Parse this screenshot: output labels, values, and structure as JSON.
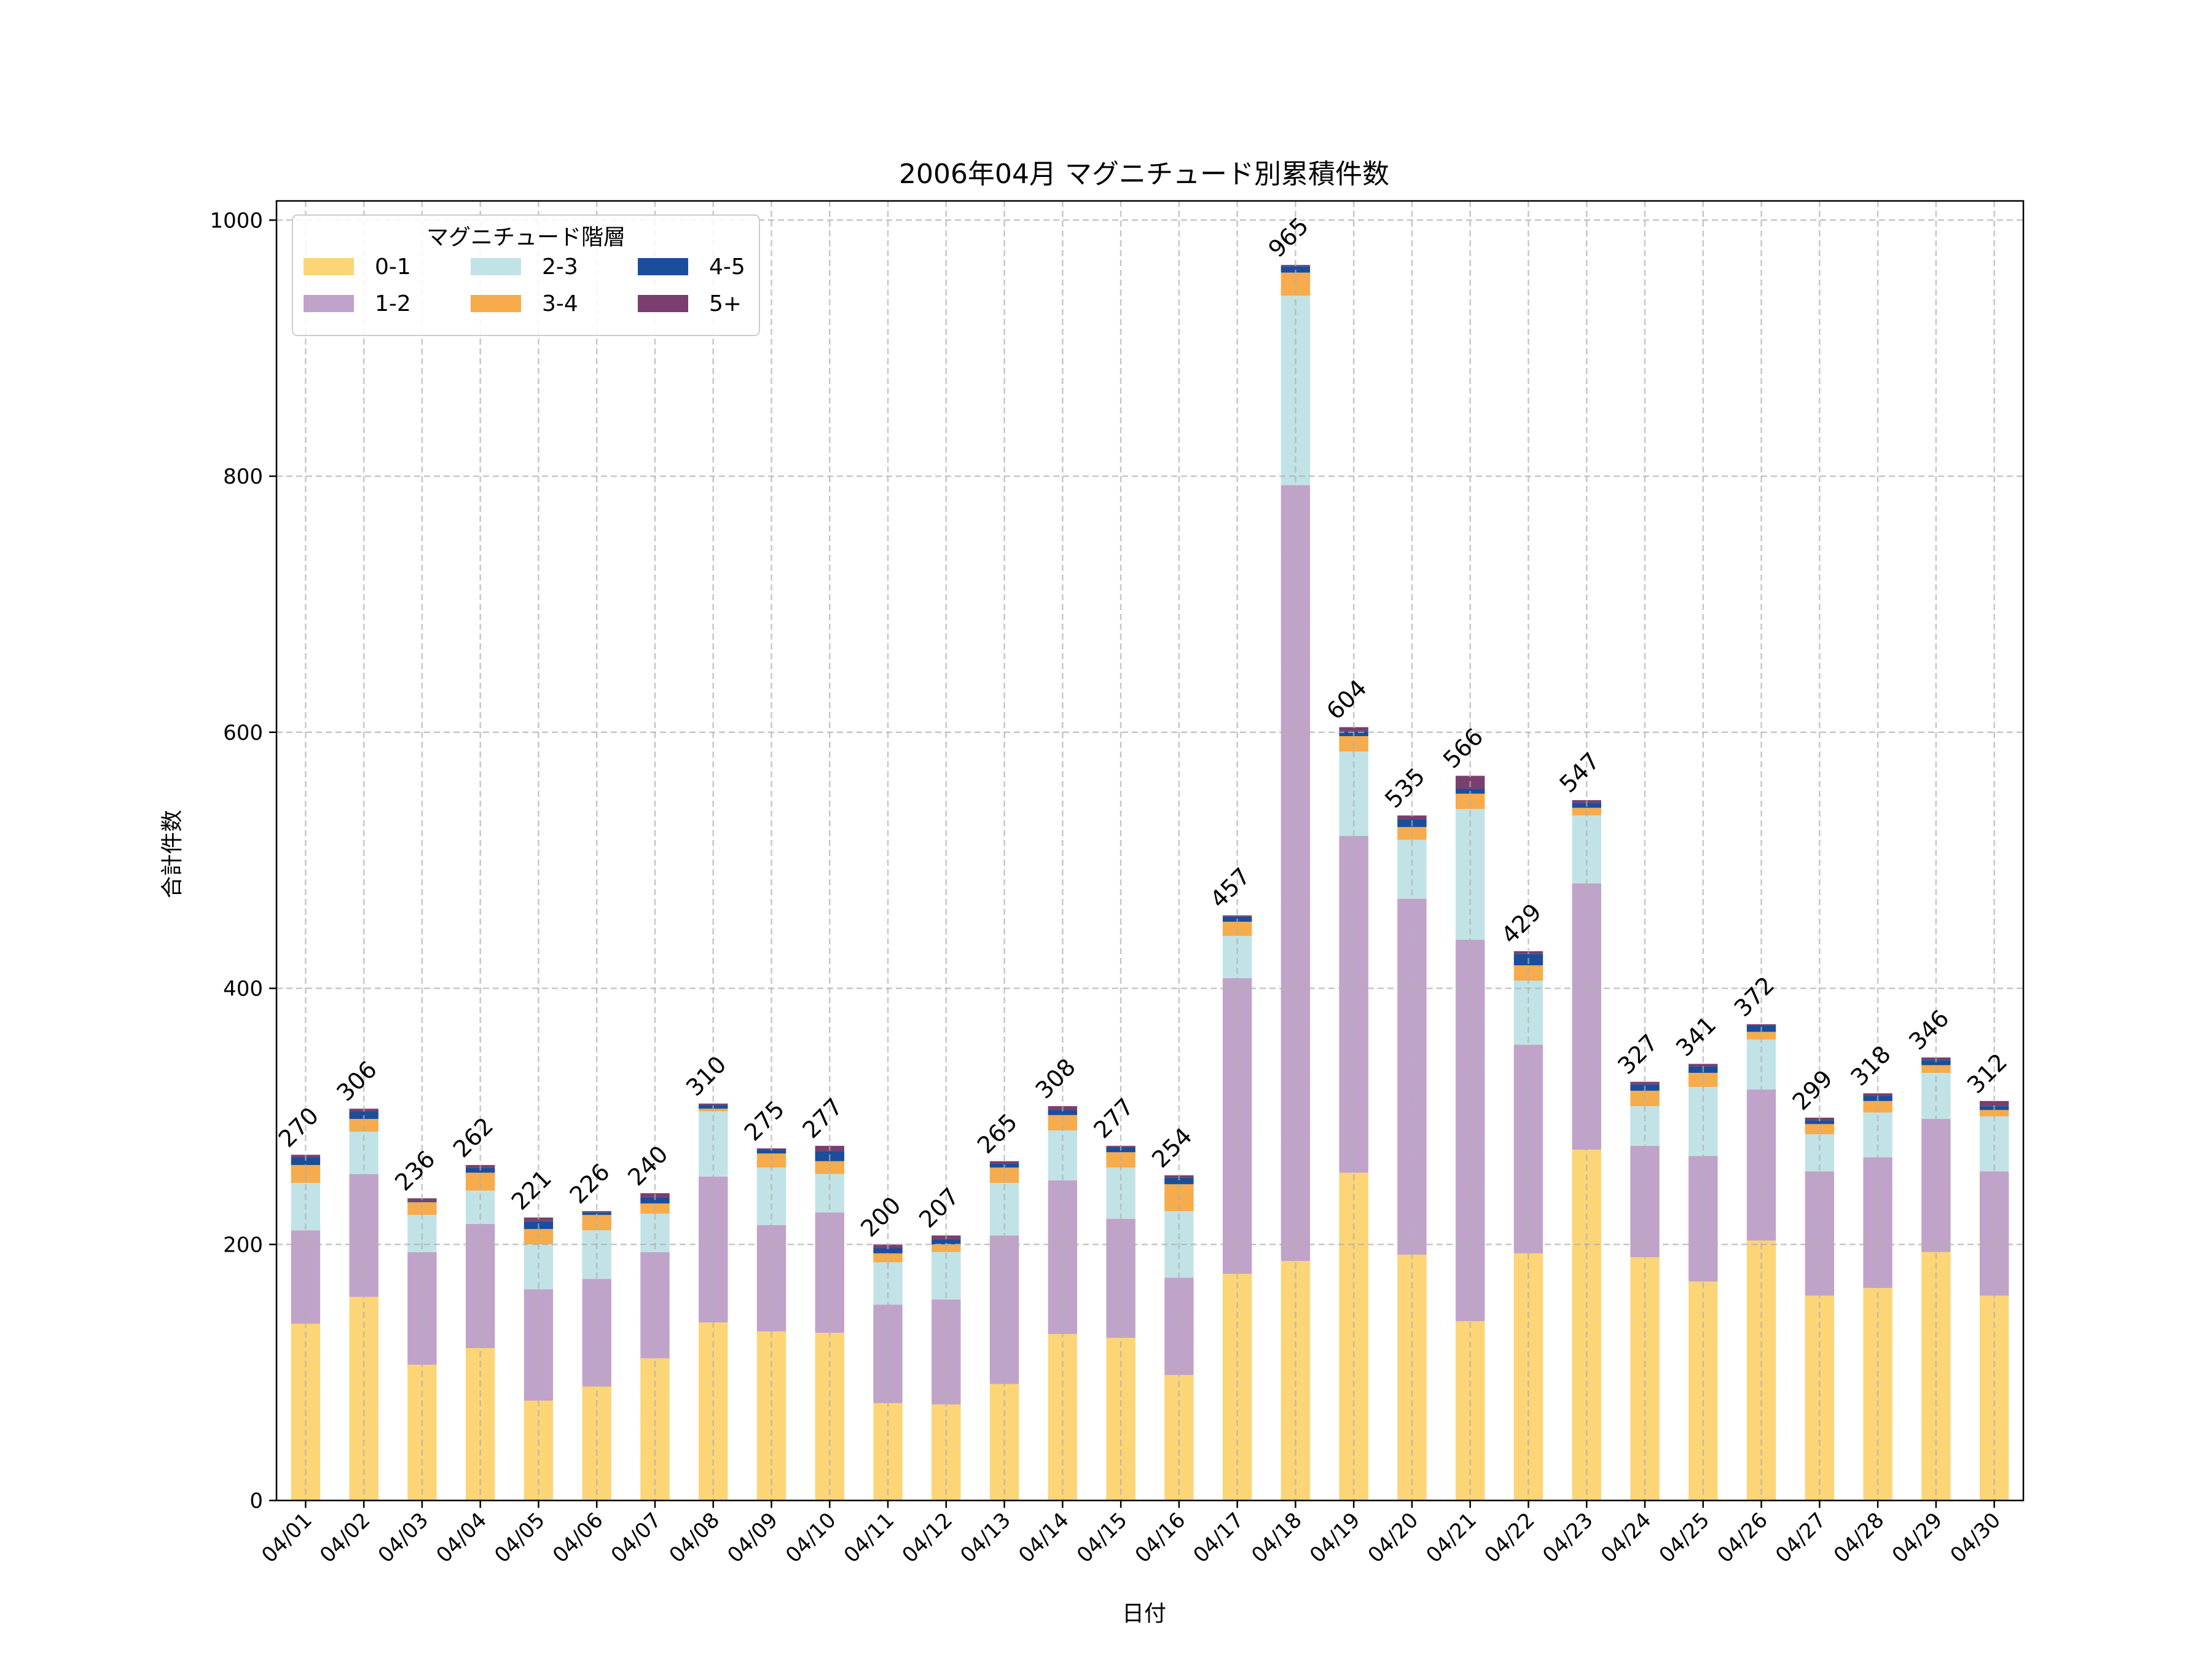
{
  "chart_data": {
    "type": "bar",
    "stacked": true,
    "title": "2006年04月 マグニチュード別累積件数",
    "xlabel": "日付",
    "ylabel": "合計件数",
    "ylim": [
      0,
      1015
    ],
    "yticks": [
      0,
      200,
      400,
      600,
      800,
      1000
    ],
    "grid": true,
    "legend": {
      "title": "マグニチュード階層",
      "placement": "top-left",
      "columns": 3
    },
    "categories": [
      "04/01",
      "04/02",
      "04/03",
      "04/04",
      "04/05",
      "04/06",
      "04/07",
      "04/08",
      "04/09",
      "04/10",
      "04/11",
      "04/12",
      "04/13",
      "04/14",
      "04/15",
      "04/16",
      "04/17",
      "04/18",
      "04/19",
      "04/20",
      "04/21",
      "04/22",
      "04/23",
      "04/24",
      "04/25",
      "04/26",
      "04/27",
      "04/28",
      "04/29",
      "04/30"
    ],
    "series": [
      {
        "name": "0-1",
        "color": "#fcd577",
        "values": [
          138,
          159,
          106,
          119,
          78,
          89,
          111,
          139,
          132,
          131,
          76,
          75,
          91,
          130,
          127,
          98,
          177,
          187,
          256,
          192,
          140,
          193,
          274,
          190,
          171,
          203,
          160,
          166,
          194,
          160
        ]
      },
      {
        "name": "1-2",
        "color": "#c0a3c8",
        "values": [
          73,
          96,
          88,
          97,
          87,
          84,
          83,
          114,
          83,
          94,
          77,
          82,
          116,
          120,
          93,
          76,
          231,
          606,
          263,
          278,
          298,
          163,
          208,
          87,
          98,
          118,
          97,
          102,
          104,
          97
        ]
      },
      {
        "name": "2-3",
        "color": "#c1e3e6",
        "values": [
          37,
          33,
          29,
          26,
          35,
          38,
          30,
          51,
          45,
          30,
          33,
          37,
          41,
          39,
          40,
          52,
          33,
          148,
          66,
          46,
          102,
          50,
          53,
          31,
          54,
          39,
          29,
          35,
          36,
          43
        ]
      },
      {
        "name": "3-4",
        "color": "#f6ab4c",
        "values": [
          14,
          10,
          10,
          14,
          12,
          12,
          8,
          2,
          11,
          10,
          7,
          6,
          12,
          12,
          12,
          21,
          11,
          18,
          12,
          10,
          12,
          12,
          6,
          12,
          11,
          6,
          8,
          9,
          6,
          5
        ]
      },
      {
        "name": "4-5",
        "color": "#1b4e9a",
        "values": [
          6,
          6,
          1,
          4,
          6,
          2,
          5,
          3,
          3,
          8,
          4,
          4,
          3,
          4,
          4,
          5,
          4,
          5,
          4,
          6,
          4,
          9,
          4,
          5,
          5,
          5,
          3,
          4,
          4,
          3
        ]
      },
      {
        "name": "5+",
        "color": "#7a3f6e",
        "values": [
          2,
          2,
          2,
          2,
          3,
          1,
          3,
          1,
          1,
          4,
          3,
          3,
          2,
          3,
          1,
          2,
          1,
          1,
          3,
          3,
          10,
          2,
          2,
          2,
          2,
          1,
          2,
          2,
          2,
          4
        ]
      }
    ],
    "totals": [
      270,
      306,
      236,
      262,
      221,
      226,
      240,
      310,
      275,
      277,
      200,
      207,
      265,
      308,
      277,
      254,
      457,
      965,
      604,
      535,
      566,
      429,
      547,
      327,
      341,
      372,
      299,
      318,
      346,
      312
    ]
  }
}
